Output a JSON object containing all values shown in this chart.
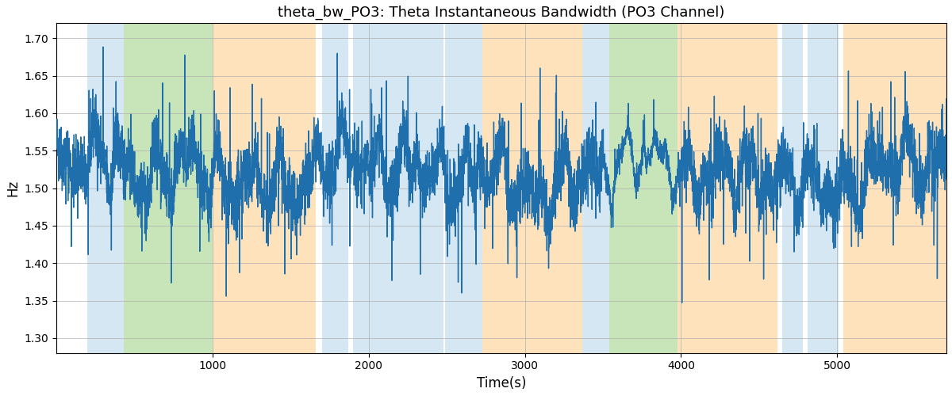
{
  "title": "theta_bw_PO3: Theta Instantaneous Bandwidth (PO3 Channel)",
  "xlabel": "Time(s)",
  "ylabel": "Hz",
  "xlim": [
    0,
    5700
  ],
  "ylim": [
    1.28,
    1.72
  ],
  "yticks": [
    1.3,
    1.35,
    1.4,
    1.45,
    1.5,
    1.55,
    1.6,
    1.65,
    1.7
  ],
  "xticks": [
    1000,
    2000,
    3000,
    4000,
    5000
  ],
  "line_color": "#1f6fad",
  "line_width": 1.0,
  "background_color": "#ffffff",
  "grid_color": "#b0b0b0",
  "blue_color": "#c8dff0",
  "green_color": "#b5dda0",
  "orange_color": "#fdd9a5",
  "region_alpha": 0.75,
  "colored_regions": [
    [
      200,
      430,
      "blue"
    ],
    [
      430,
      1000,
      "green"
    ],
    [
      1000,
      1660,
      "orange"
    ],
    [
      1700,
      1870,
      "blue"
    ],
    [
      1900,
      2480,
      "blue"
    ],
    [
      2490,
      2730,
      "blue"
    ],
    [
      2730,
      3370,
      "orange"
    ],
    [
      3370,
      3540,
      "blue"
    ],
    [
      3540,
      3980,
      "green"
    ],
    [
      3980,
      4620,
      "orange"
    ],
    [
      4650,
      4780,
      "blue"
    ],
    [
      4810,
      5010,
      "blue"
    ],
    [
      5040,
      5700,
      "orange"
    ]
  ],
  "seed": 42,
  "n_points": 5700
}
